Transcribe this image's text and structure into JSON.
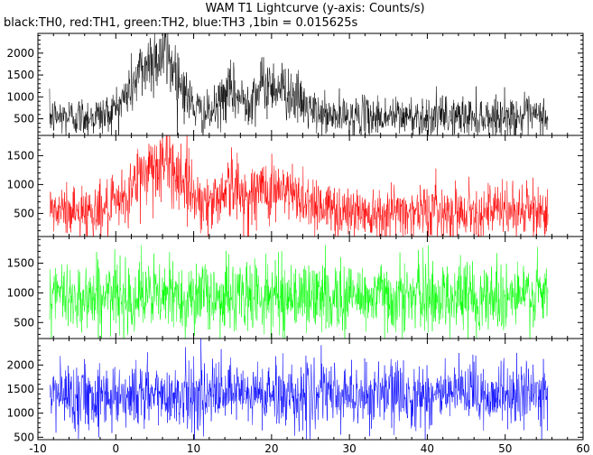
{
  "chart_data": {
    "type": "line",
    "title": "WAM T1 Lightcurve (y-axis: Counts/s)",
    "subtitle": "black:TH0, red:TH1, green:TH2, blue:TH3 ,1bin = 0.015625s",
    "xlabel": "",
    "ylabel": "",
    "xlim": [
      -10,
      60
    ],
    "x_ticks": [
      -10,
      0,
      10,
      20,
      30,
      40,
      50,
      60
    ],
    "x_range_data": [
      -8.5,
      55.5
    ],
    "bin_seconds": 0.015625,
    "panels": [
      {
        "channel": "TH0",
        "color": "#000000",
        "ylim": [
          120,
          2450
        ],
        "y_ticks": [
          500,
          1000,
          1500,
          2000
        ],
        "baseline": 550,
        "noise": 230,
        "features": [
          {
            "x": 4.0,
            "width": 2.2,
            "amp": 1000
          },
          {
            "x": 7.0,
            "width": 1.8,
            "amp": 850
          },
          {
            "x": 14.5,
            "width": 1.1,
            "amp": 500
          },
          {
            "x": 19.5,
            "width": 2.2,
            "amp": 700
          },
          {
            "x": 23.0,
            "width": 1.6,
            "amp": 250
          }
        ]
      },
      {
        "channel": "TH1",
        "color": "#ff0000",
        "ylim": [
          100,
          1850
        ],
        "y_ticks": [
          500,
          1000,
          1500
        ],
        "baseline": 540,
        "noise": 230,
        "features": [
          {
            "x": 4.0,
            "width": 2.0,
            "amp": 550
          },
          {
            "x": 7.5,
            "width": 2.2,
            "amp": 600
          },
          {
            "x": 14.5,
            "width": 1.2,
            "amp": 420
          },
          {
            "x": 19.5,
            "width": 2.2,
            "amp": 380
          },
          {
            "x": 24.0,
            "width": 2.0,
            "amp": 180
          }
        ]
      },
      {
        "channel": "TH2",
        "color": "#00ff00",
        "ylim": [
          230,
          1950
        ],
        "y_ticks": [
          500,
          1000,
          1500
        ],
        "baseline": 940,
        "noise": 300,
        "features": []
      },
      {
        "channel": "TH3",
        "color": "#0000ff",
        "ylim": [
          450,
          2550
        ],
        "y_ticks": [
          500,
          1000,
          1500,
          2000
        ],
        "baseline": 1380,
        "noise": 340,
        "features": []
      }
    ]
  }
}
